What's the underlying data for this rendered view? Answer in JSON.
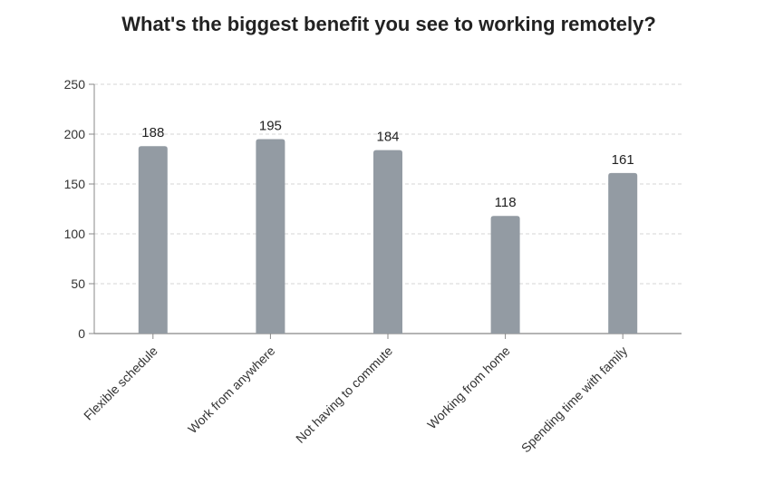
{
  "chart_data": {
    "type": "bar",
    "title": "What's the biggest benefit you see to working remotely?",
    "categories": [
      "Flexible schedule",
      "Work from anywhere",
      "Not having to commute",
      "Working from home",
      "Spending time with family"
    ],
    "values": [
      188,
      195,
      184,
      118,
      161
    ],
    "ylim": [
      0,
      250
    ],
    "yticks": [
      0,
      50,
      100,
      150,
      200,
      250
    ],
    "grid": true,
    "bar_color": "#939ba3",
    "grid_color": "#d6d6d6",
    "axis_color": "#888888",
    "xlabel": "",
    "ylabel": ""
  }
}
